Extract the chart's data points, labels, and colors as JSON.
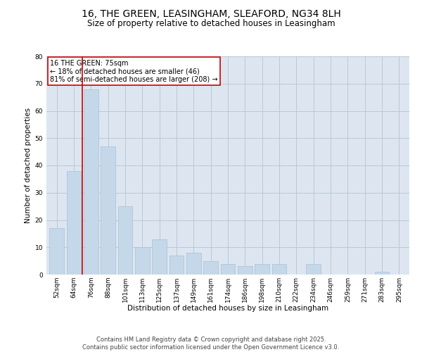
{
  "title1": "16, THE GREEN, LEASINGHAM, SLEAFORD, NG34 8LH",
  "title2": "Size of property relative to detached houses in Leasingham",
  "xlabel": "Distribution of detached houses by size in Leasingham",
  "ylabel": "Number of detached properties",
  "categories": [
    "52sqm",
    "64sqm",
    "76sqm",
    "88sqm",
    "101sqm",
    "113sqm",
    "125sqm",
    "137sqm",
    "149sqm",
    "161sqm",
    "174sqm",
    "186sqm",
    "198sqm",
    "210sqm",
    "222sqm",
    "234sqm",
    "246sqm",
    "259sqm",
    "271sqm",
    "283sqm",
    "295sqm"
  ],
  "values": [
    17,
    38,
    68,
    47,
    25,
    10,
    13,
    7,
    8,
    5,
    4,
    3,
    4,
    4,
    0,
    4,
    0,
    0,
    0,
    1,
    0
  ],
  "bar_color": "#c5d8ea",
  "bar_edge_color": "#a8c0d6",
  "vline_color": "#cc0000",
  "vline_x": 1.5,
  "annotation_text": "16 THE GREEN: 75sqm\n← 18% of detached houses are smaller (46)\n81% of semi-detached houses are larger (208) →",
  "annotation_box_color": "#cc0000",
  "ylim": [
    0,
    80
  ],
  "yticks": [
    0,
    10,
    20,
    30,
    40,
    50,
    60,
    70,
    80
  ],
  "grid_color": "#b8c8d8",
  "bg_color": "#dde6f0",
  "footer_line1": "Contains HM Land Registry data © Crown copyright and database right 2025.",
  "footer_line2": "Contains public sector information licensed under the Open Government Licence v3.0.",
  "title_fontsize": 10,
  "subtitle_fontsize": 8.5,
  "axis_label_fontsize": 7.5,
  "tick_fontsize": 6.5,
  "annotation_fontsize": 7,
  "footer_fontsize": 6
}
